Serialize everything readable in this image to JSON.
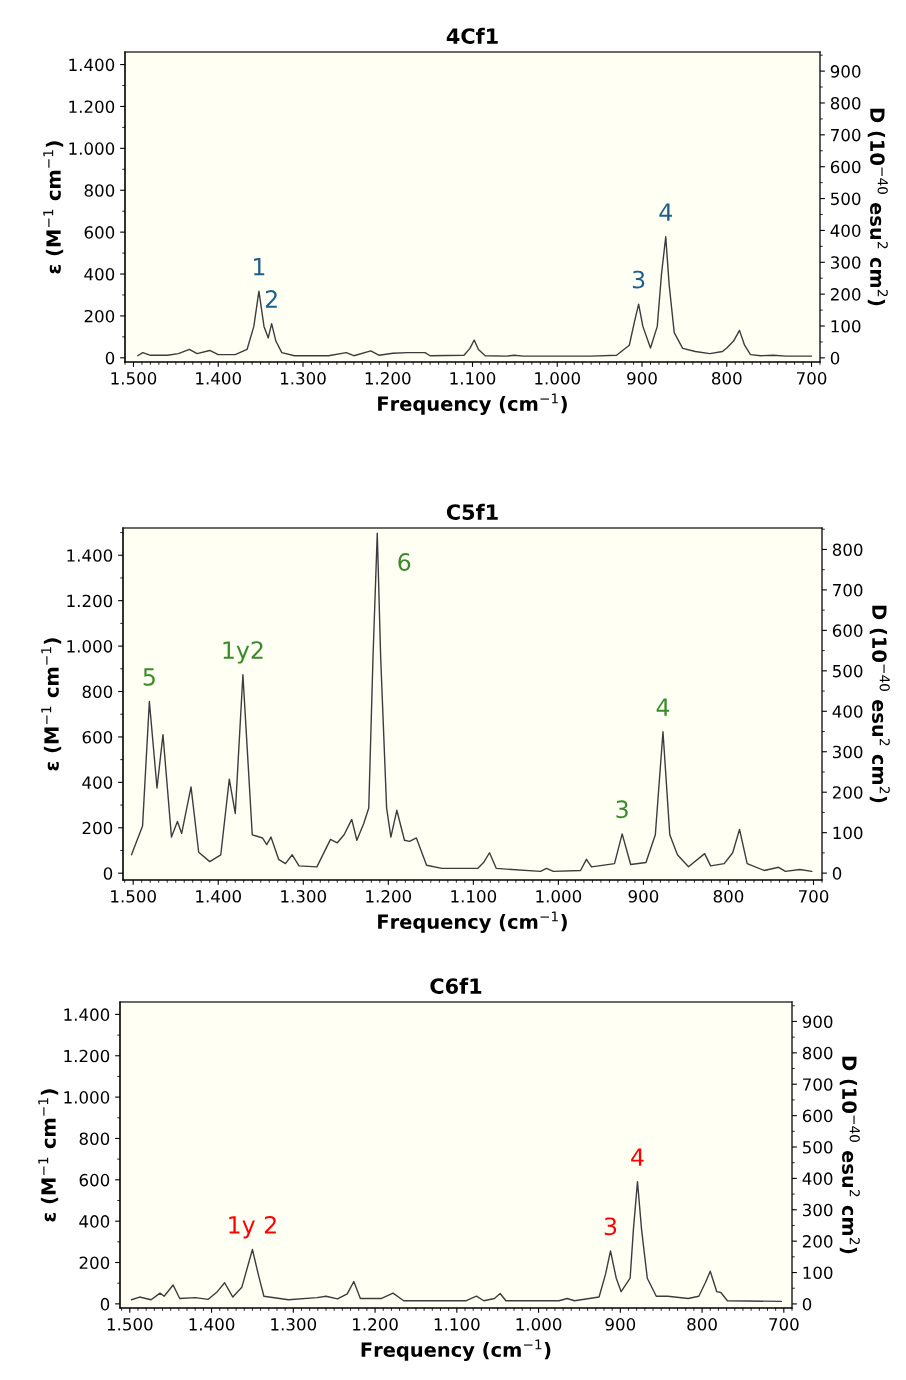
{
  "chart_data": [
    {
      "type": "line",
      "title": "4Cf1",
      "xlabel": "Frequency (cm$^{−1}$)",
      "ylabel": "ε (M$^{−1}$ cm$^{−1}$)",
      "y2label": "D (10$^{−40}$ esu$^{2}$ cm$^{2}$)",
      "series": [
        {
          "color": "#3c3c3c",
          "x": [
            1495,
            1489,
            1480,
            1460,
            1447,
            1434,
            1425,
            1410,
            1400,
            1380,
            1366,
            1358,
            1352,
            1346,
            1341,
            1337,
            1332,
            1325,
            1310,
            1270,
            1249,
            1240,
            1220,
            1210,
            1194,
            1177,
            1156,
            1150,
            1110,
            1103,
            1098,
            1093,
            1085,
            1060,
            1051,
            1040,
            1000,
            960,
            930,
            915,
            909,
            904,
            899,
            890,
            882,
            877,
            872,
            868,
            862,
            852,
            837,
            820,
            805,
            800,
            792,
            785,
            779,
            772,
            760,
            745,
            730,
            700
          ],
          "values": [
            10,
            25,
            12,
            12,
            20,
            40,
            20,
            35,
            15,
            15,
            40,
            150,
            318,
            150,
            95,
            163,
            80,
            25,
            10,
            10,
            25,
            10,
            33,
            12,
            22,
            25,
            25,
            10,
            12,
            45,
            85,
            40,
            10,
            8,
            12,
            8,
            8,
            8,
            12,
            60,
            170,
            256,
            150,
            47,
            150,
            400,
            578,
            350,
            120,
            45,
            30,
            20,
            30,
            47,
            80,
            131,
            60,
            15,
            10,
            12,
            8,
            8
          ]
        }
      ],
      "xlim": [
        1510,
        690
      ],
      "xticks": [
        {
          "value": 1500,
          "label": "1.500"
        },
        {
          "value": 1400,
          "label": "1.400"
        },
        {
          "value": 1300,
          "label": "1.300"
        },
        {
          "value": 1200,
          "label": "1.200"
        },
        {
          "value": 1100,
          "label": "1.100"
        },
        {
          "value": 1000,
          "label": "1.000"
        },
        900,
        800,
        700
      ],
      "ylim": [
        -20,
        1460
      ],
      "yticks": [
        0,
        200,
        400,
        600,
        800,
        {
          "value": 1000,
          "label": "1.000"
        },
        {
          "value": 1200,
          "label": "1.200"
        },
        {
          "value": 1400,
          "label": "1.400"
        }
      ],
      "y2lim": [
        -13,
        960
      ],
      "y2ticks": [
        0,
        100,
        200,
        300,
        400,
        500,
        600,
        700,
        800,
        900
      ],
      "annotations": [
        {
          "text": "1",
          "x": 1352,
          "y": 318
        },
        {
          "text": "2",
          "x": 1337,
          "y": 163
        },
        {
          "text": "3",
          "x": 904,
          "y": 256
        },
        {
          "text": "4",
          "x": 872,
          "y": 578
        }
      ]
    },
    {
      "type": "line",
      "title": "C5f1",
      "xlabel": "Frequency (cm$^{−1}$)",
      "ylabel": "ε (M$^{−1}$ cm$^{−1}$)",
      "y2label": "D (10$^{−40}$ esu$^{2}$ cm$^{2}$)",
      "series": [
        {
          "color": "#3c3c3c",
          "x": [
            1502,
            1489,
            1481,
            1472,
            1465,
            1455,
            1448,
            1443,
            1432,
            1423,
            1410,
            1397,
            1387,
            1380,
            1371,
            1360,
            1348,
            1343,
            1338,
            1329,
            1321,
            1313,
            1305,
            1284,
            1268,
            1260,
            1252,
            1243,
            1237,
            1229,
            1223,
            1218,
            1213,
            1209,
            1202,
            1197,
            1190,
            1181,
            1175,
            1167,
            1155,
            1137,
            1095,
            1088,
            1081,
            1073,
            1021,
            1014,
            1006,
            974,
            967,
            961,
            934,
            925,
            915,
            897,
            886,
            877,
            869,
            860,
            847,
            828,
            821,
            805,
            795,
            787,
            778,
            758,
            741,
            733,
            716,
            702
          ],
          "values": [
            81,
            208,
            756,
            375,
            610,
            159,
            228,
            175,
            380,
            92,
            51,
            81,
            414,
            263,
            874,
            169,
            155,
            126,
            159,
            61,
            42,
            81,
            32,
            28,
            149,
            134,
            169,
            237,
            145,
            218,
            287,
            952,
            1497,
            952,
            287,
            159,
            277,
            145,
            140,
            155,
            35,
            21,
            21,
            47,
            90,
            21,
            8,
            21,
            8,
            12,
            61,
            28,
            42,
            173,
            38,
            47,
            169,
            623,
            169,
            81,
            28,
            86,
            32,
            42,
            90,
            193,
            42,
            12,
            26,
            8,
            16,
            8
          ]
        }
      ],
      "xlim": [
        1512,
        690
      ],
      "xticks": [
        {
          "value": 1500,
          "label": "1.500"
        },
        {
          "value": 1400,
          "label": "1.400"
        },
        {
          "value": 1300,
          "label": "1.300"
        },
        {
          "value": 1200,
          "label": "1.200"
        },
        {
          "value": 1100,
          "label": "1.100"
        },
        {
          "value": 1000,
          "label": "1.000"
        },
        900,
        800,
        700
      ],
      "ylim": [
        -30,
        1520
      ],
      "yticks": [
        0,
        200,
        400,
        600,
        800,
        {
          "value": 1000,
          "label": "1.000"
        },
        {
          "value": 1200,
          "label": "1.200"
        },
        {
          "value": 1400,
          "label": "1.400"
        }
      ],
      "y2lim": [
        -17,
        853
      ],
      "y2ticks": [
        0,
        100,
        200,
        300,
        400,
        500,
        600,
        700,
        800
      ],
      "annotations": [
        {
          "text": "5",
          "x": 1481,
          "y": 756
        },
        {
          "text": "1y2",
          "x": 1371,
          "y": 874
        },
        {
          "text": "6",
          "x": 1213,
          "y": 1497
        },
        {
          "text": "3",
          "x": 925,
          "y": 173
        },
        {
          "text": "4",
          "x": 877,
          "y": 623
        }
      ]
    },
    {
      "type": "line",
      "title": "C6f1",
      "xlabel": "Frequency (cm$^{−1}$)",
      "ylabel": "ε (M$^{−1}$ cm$^{−1}$)",
      "y2label": "D (10$^{−40}$ esu$^{2}$ cm$^{2}$)",
      "series": [
        {
          "color": "#3c3c3c",
          "x": [
            1498,
            1488,
            1474,
            1463,
            1458,
            1447,
            1439,
            1420,
            1404,
            1393,
            1384,
            1374,
            1363,
            1350,
            1343,
            1336,
            1306,
            1271,
            1260,
            1246,
            1234,
            1226,
            1218,
            1192,
            1178,
            1165,
            1089,
            1076,
            1067,
            1054,
            1047,
            1040,
            975,
            965,
            956,
            926,
            918,
            912,
            905,
            899,
            888,
            884,
            879,
            874,
            867,
            856,
            842,
            817,
            804,
            796,
            790,
            782,
            777,
            769,
            703
          ],
          "values": [
            20,
            33,
            20,
            52,
            37,
            91,
            26,
            30,
            22,
            59,
            102,
            33,
            80,
            263,
            145,
            37,
            20,
            30,
            37,
            24,
            48,
            108,
            26,
            26,
            52,
            15,
            15,
            37,
            15,
            26,
            50,
            15,
            15,
            26,
            15,
            33,
            145,
            256,
            124,
            59,
            124,
            359,
            591,
            359,
            124,
            37,
            37,
            26,
            37,
            102,
            158,
            59,
            55,
            15,
            12
          ]
        }
      ],
      "xlim": [
        1512,
        690
      ],
      "xticks": [
        {
          "value": 1500,
          "label": "1.500"
        },
        {
          "value": 1400,
          "label": "1.400"
        },
        {
          "value": 1300,
          "label": "1.300"
        },
        {
          "value": 1200,
          "label": "1.200"
        },
        {
          "value": 1100,
          "label": "1.100"
        },
        {
          "value": 1000,
          "label": "1.000"
        },
        900,
        800,
        700
      ],
      "ylim": [
        -20,
        1460
      ],
      "yticks": [
        0,
        200,
        400,
        600,
        800,
        {
          "value": 1000,
          "label": "1.000"
        },
        {
          "value": 1200,
          "label": "1.200"
        },
        {
          "value": 1400,
          "label": "1.400"
        }
      ],
      "y2lim": [
        -13,
        962
      ],
      "y2ticks": [
        0,
        100,
        200,
        300,
        400,
        500,
        600,
        700,
        800,
        900
      ],
      "annotations": [
        {
          "text": "1y 2",
          "x": 1350,
          "y": 263
        },
        {
          "text": "3",
          "x": 912,
          "y": 256
        },
        {
          "text": "4",
          "x": 879,
          "y": 591
        }
      ]
    }
  ]
}
